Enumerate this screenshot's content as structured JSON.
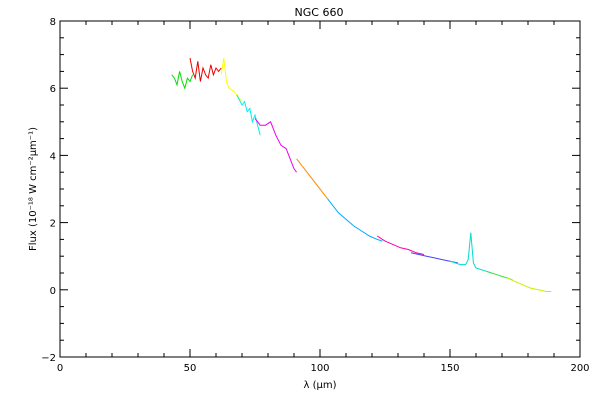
{
  "chart_data": {
    "type": "line",
    "title": "NGC 660",
    "xlabel": "λ (μm)",
    "ylabel": "Flux (10⁻¹⁸ W cm⁻²μm⁻¹)",
    "xlim": [
      0,
      200
    ],
    "ylim": [
      -2,
      8
    ],
    "xticks": [
      0,
      50,
      100,
      150,
      200
    ],
    "yticks": [
      -2,
      0,
      2,
      4,
      6,
      8
    ],
    "xtick_labels": [
      "0",
      "50",
      "100",
      "150",
      "200"
    ],
    "ytick_labels": [
      "−2",
      "0",
      "2",
      "4",
      "6",
      "8"
    ],
    "grid": false,
    "series": [
      {
        "color": "#00dd00",
        "x": [
          43,
          44,
          45,
          46,
          47,
          48,
          49,
          50,
          51
        ],
        "y": [
          6.4,
          6.3,
          6.1,
          6.5,
          6.2,
          6.0,
          6.3,
          6.2,
          6.4
        ]
      },
      {
        "color": "#ee0000",
        "x": [
          50,
          51,
          52,
          53,
          54,
          55,
          56,
          57,
          58,
          59,
          60,
          61,
          62
        ],
        "y": [
          6.9,
          6.5,
          6.3,
          6.8,
          6.2,
          6.6,
          6.4,
          6.3,
          6.7,
          6.4,
          6.6,
          6.5,
          6.6
        ]
      },
      {
        "color": "#ffff00",
        "x": [
          62,
          63,
          64,
          65,
          66,
          67,
          68,
          69,
          70
        ],
        "y": [
          6.4,
          6.9,
          6.2,
          6.0,
          5.95,
          5.9,
          5.8,
          5.7,
          5.6
        ]
      },
      {
        "color": "#00eeee",
        "x": [
          68,
          70,
          71,
          72,
          73,
          74,
          75,
          76,
          77
        ],
        "y": [
          5.8,
          5.5,
          5.6,
          5.3,
          5.4,
          5.0,
          5.2,
          4.9,
          4.6
        ]
      },
      {
        "color": "#ee00ee",
        "x": [
          75,
          77,
          79,
          81,
          83,
          85,
          87,
          88,
          89,
          90,
          91
        ],
        "y": [
          5.1,
          4.9,
          4.9,
          5.0,
          4.6,
          4.3,
          4.2,
          4.0,
          3.8,
          3.6,
          3.5
        ]
      },
      {
        "color": "#ff8800",
        "x": [
          91,
          93,
          95,
          97,
          99,
          101,
          103
        ],
        "y": [
          3.9,
          3.7,
          3.5,
          3.3,
          3.1,
          2.9,
          2.7
        ]
      },
      {
        "color": "#00aaff",
        "x": [
          103,
          105,
          107,
          110,
          113,
          116,
          119,
          122,
          124
        ],
        "y": [
          2.7,
          2.5,
          2.3,
          2.1,
          1.9,
          1.75,
          1.6,
          1.5,
          1.45
        ]
      },
      {
        "color": "#ff00aa",
        "x": [
          122,
          125,
          128,
          131,
          134,
          137,
          140
        ],
        "y": [
          1.6,
          1.45,
          1.35,
          1.25,
          1.2,
          1.1,
          1.05
        ]
      },
      {
        "color": "#4444ff",
        "x": [
          135,
          138,
          141,
          144,
          147,
          150,
          153
        ],
        "y": [
          1.1,
          1.05,
          1.0,
          0.95,
          0.9,
          0.85,
          0.8
        ]
      },
      {
        "color": "#00ddcc",
        "x": [
          150,
          152,
          154,
          156,
          157,
          158,
          159,
          160,
          162,
          164,
          166
        ],
        "y": [
          0.85,
          0.8,
          0.75,
          0.75,
          0.9,
          1.7,
          0.8,
          0.65,
          0.6,
          0.55,
          0.5
        ]
      },
      {
        "color": "#44dd44",
        "x": [
          164,
          166,
          168,
          170,
          172,
          174
        ],
        "y": [
          0.55,
          0.5,
          0.45,
          0.4,
          0.35,
          0.3
        ]
      },
      {
        "color": "#ccee00",
        "x": [
          172,
          175,
          178,
          181,
          184,
          187,
          189
        ],
        "y": [
          0.35,
          0.25,
          0.15,
          0.05,
          0.0,
          -0.05,
          -0.05
        ]
      }
    ]
  }
}
